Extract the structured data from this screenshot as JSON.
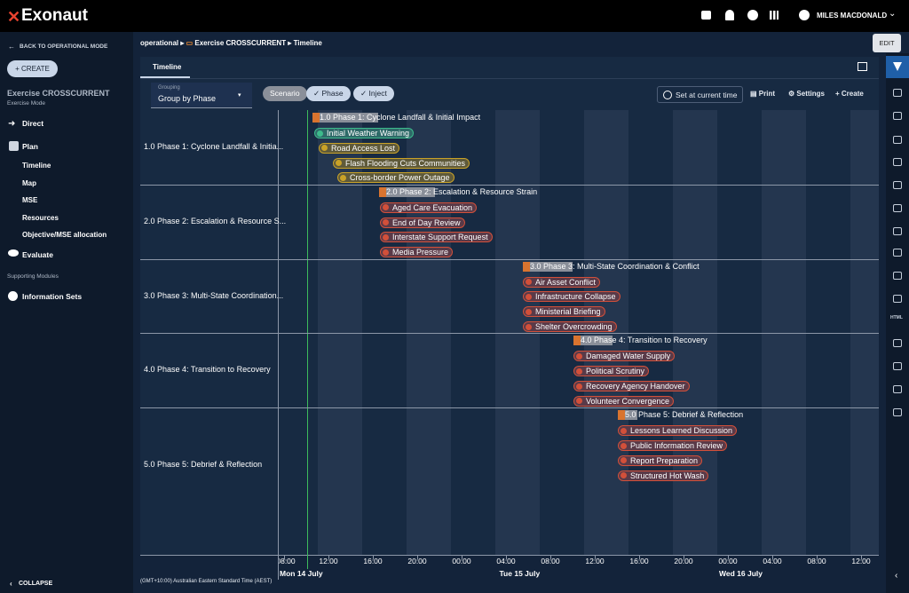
{
  "app": {
    "brand": "Exonaut",
    "user": "MILES MACDONALD"
  },
  "sidebar": {
    "back": "BACK TO OPERATIONAL MODE",
    "create": "CREATE",
    "exercise": "Exercise CROSSCURRENT",
    "mode": "Exercise Mode",
    "direct": "Direct",
    "plan": "Plan",
    "plan_items": [
      "Timeline",
      "Map",
      "MSE",
      "Resources",
      "Objective/MSE allocation"
    ],
    "evaluate": "Evaluate",
    "section": "Supporting Modules",
    "info": "Information Sets",
    "collapse": "COLLAPSE"
  },
  "breadcrumb": [
    "operational",
    "Exercise CROSSCURRENT",
    "Timeline"
  ],
  "edit": "EDIT",
  "tab": "Timeline",
  "toolbar": {
    "grouping_label": "Grouping",
    "grouping_value": "Group by Phase",
    "chips": [
      "Scenario",
      "Phase",
      "Inject"
    ],
    "current_time": "Set at current time",
    "print": "Print",
    "settings": "Settings",
    "create": "Create"
  },
  "groups": [
    {
      "label": "1.0 Phase 1: Cyclone Landfall & Initia...",
      "phase": "1.0 Phase 1: Cyclone Landfall & Initial Impact",
      "injects": [
        "Initial Weather Warning",
        "Road Access Lost",
        "Flash Flooding Cuts Communities",
        "Cross-border Power Outage"
      ]
    },
    {
      "label": "2.0 Phase 2: Escalation & Resource S...",
      "phase": "2.0 Phase 2: Escalation & Resource Strain",
      "injects": [
        "Aged Care Evacuation",
        "End of Day Review",
        "Interstate Support Request",
        "Media Pressure"
      ]
    },
    {
      "label": "3.0 Phase 3: Multi-State Coordination...",
      "phase": "3.0 Phase 3: Multi-State Coordination & Conflict",
      "injects": [
        "Air Asset Conflict",
        "Infrastructure Collapse",
        "Ministerial Briefing",
        "Shelter Overcrowding"
      ]
    },
    {
      "label": "4.0 Phase 4: Transition to Recovery",
      "phase": "4.0 Phase 4: Transition to Recovery",
      "injects": [
        "Damaged Water Supply",
        "Political Scrutiny",
        "Recovery Agency Handover",
        "Volunteer Convergence"
      ]
    },
    {
      "label": "5.0 Phase 5: Debrief & Reflection",
      "phase": "5.0 Phase 5: Debrief & Reflection",
      "injects": [
        "Lessons Learned Discussion",
        "Public Information Review",
        "Report Preparation",
        "Structured Hot Wash"
      ]
    }
  ],
  "axis": {
    "ticks": [
      "08:00",
      "12:00",
      "16:00",
      "20:00",
      "00:00",
      "04:00",
      "08:00",
      "12:00",
      "16:00",
      "20:00",
      "00:00",
      "04:00",
      "08:00",
      "12:00"
    ],
    "days": [
      "Mon 14 July",
      "Tue 15 July",
      "Wed 16 July"
    ],
    "timezone": "(GMT+10:00) Australian Eastern Standard Time (AEST)"
  },
  "rail": {
    "html": "HTML"
  }
}
